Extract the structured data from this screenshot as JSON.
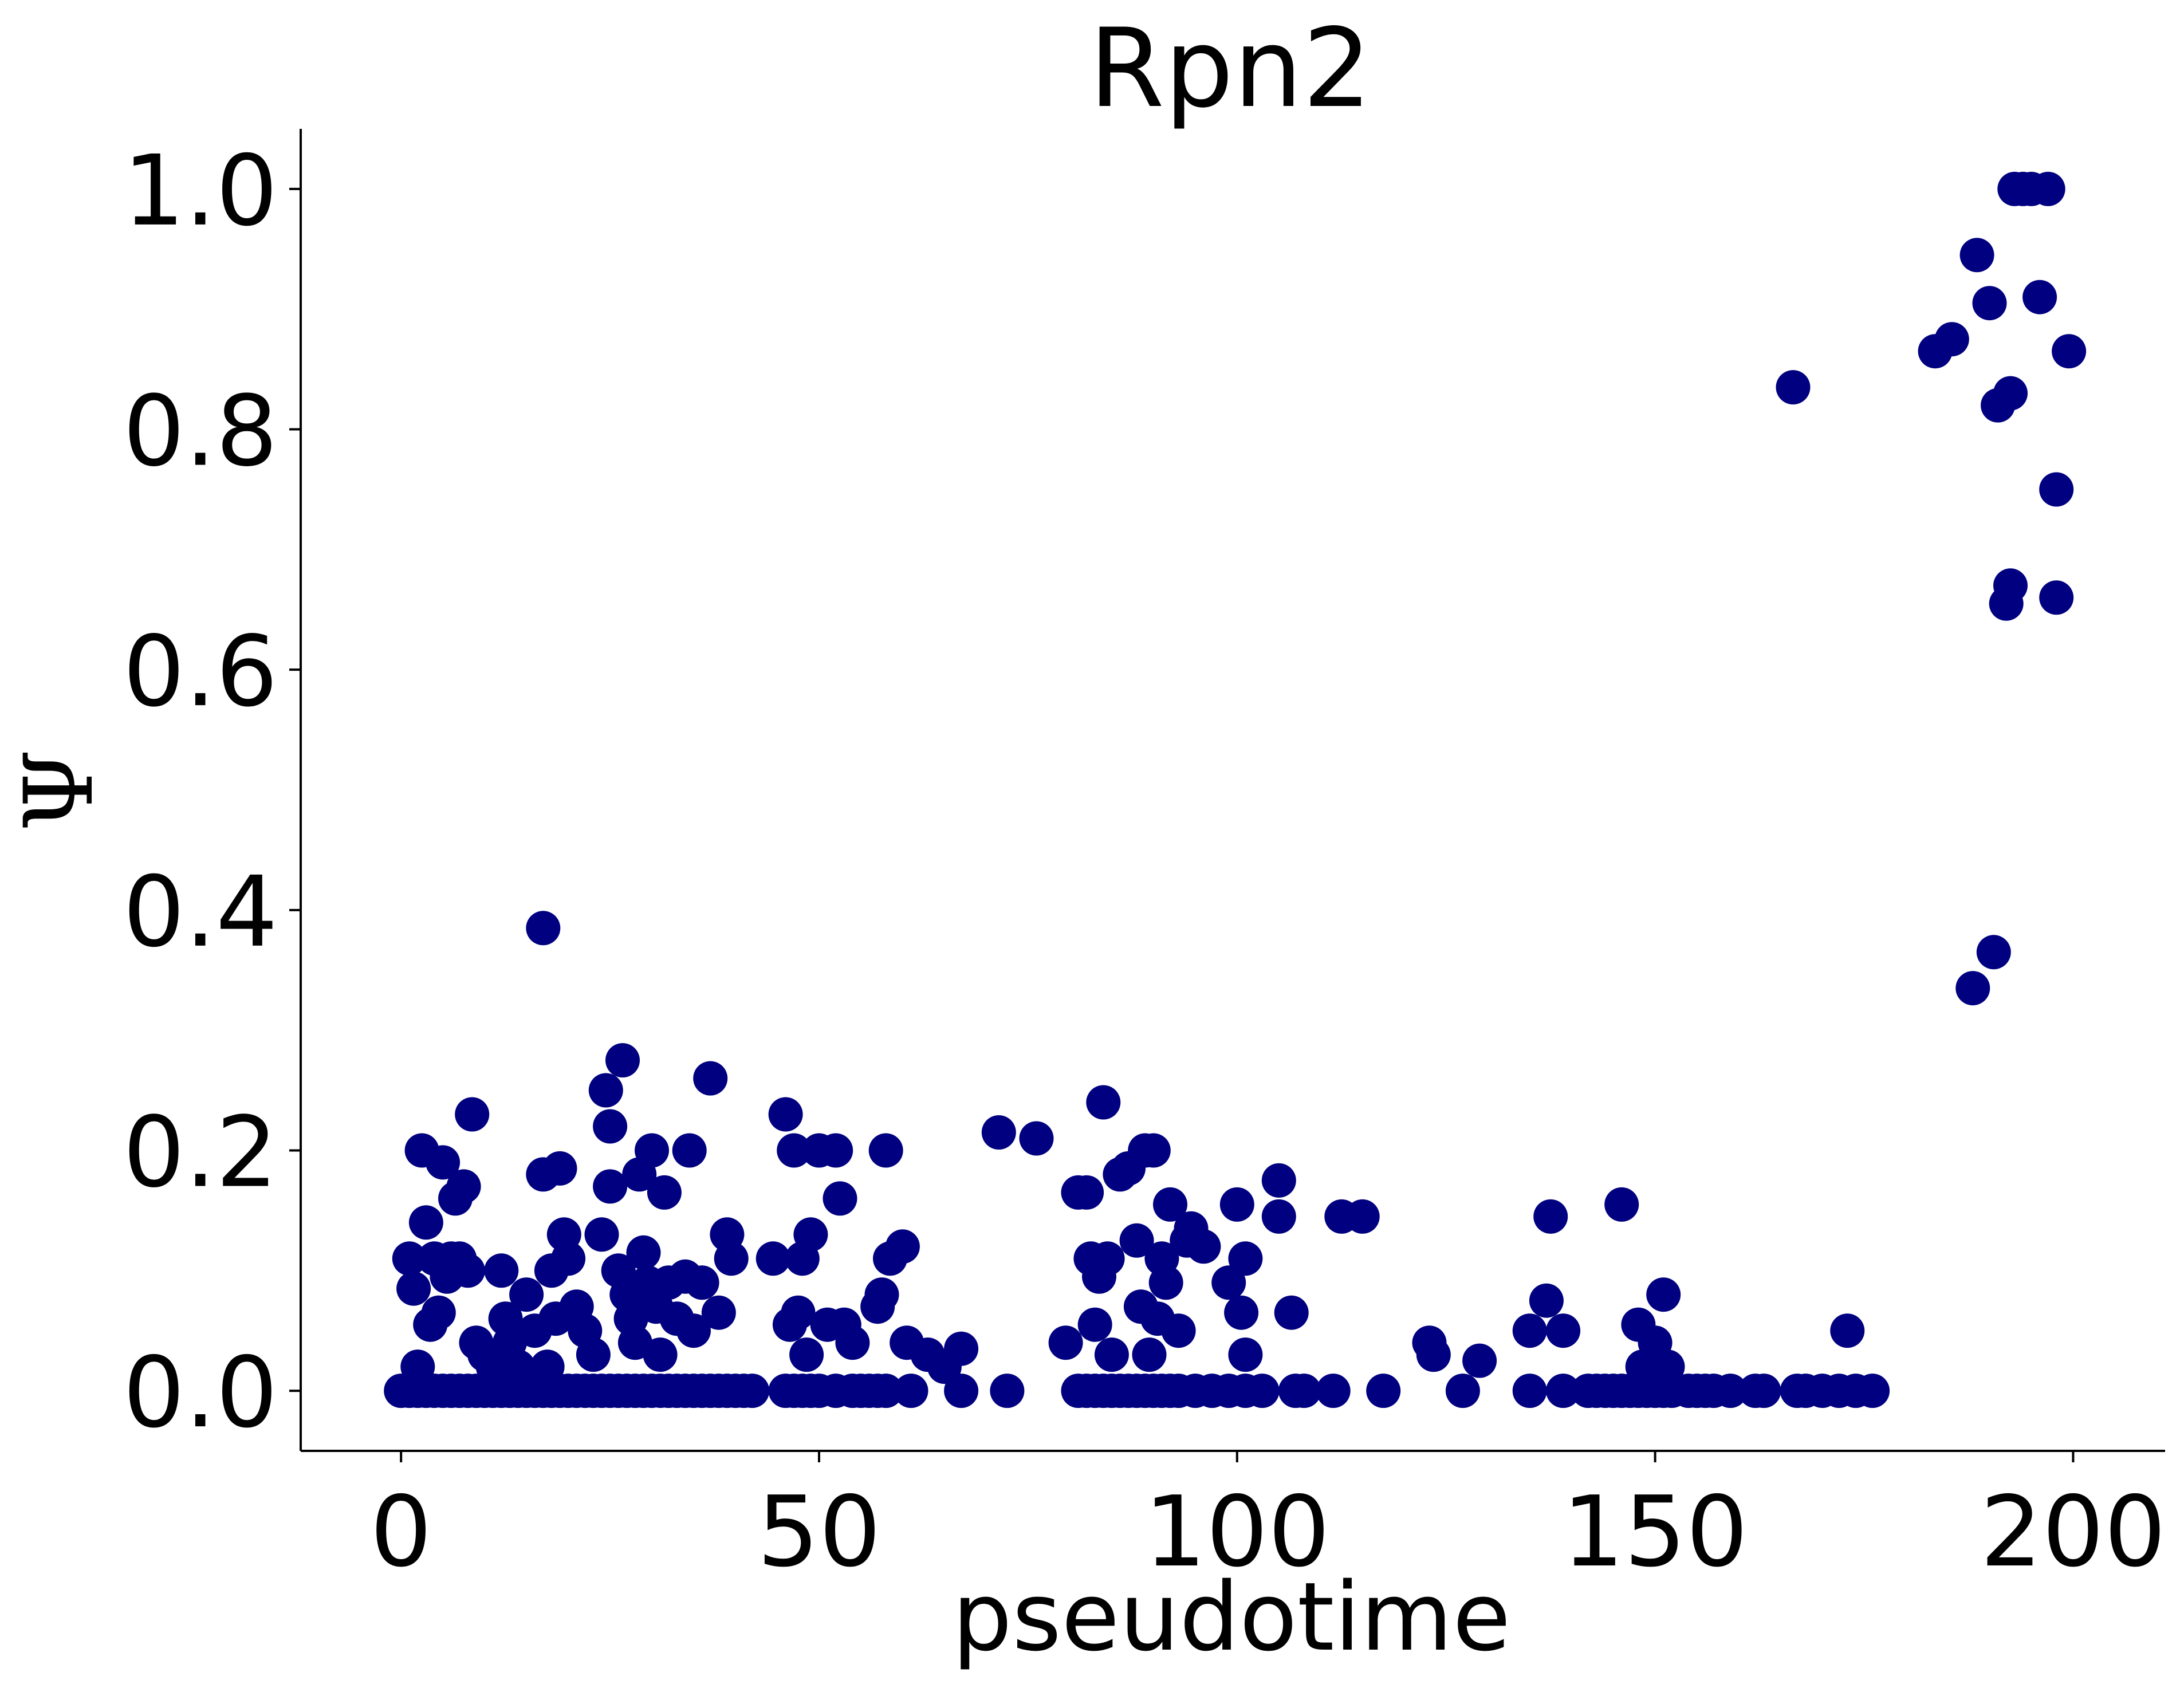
{
  "chart_data": {
    "type": "scatter",
    "title": "Rpn2",
    "xlabel": "pseudotime",
    "ylabel": "Ψ",
    "xlim": [
      -12,
      211
    ],
    "ylim": [
      -0.05,
      1.05
    ],
    "xticks": [
      0,
      50,
      100,
      150,
      200
    ],
    "xtick_labels": [
      "0",
      "50",
      "100",
      "150",
      "200"
    ],
    "yticks": [
      0.0,
      0.2,
      0.4,
      0.6,
      0.8,
      1.0
    ],
    "ytick_labels": [
      "0.0",
      "0.2",
      "0.4",
      "0.6",
      "0.8",
      "1.0"
    ],
    "grid": false,
    "legend": "none",
    "marker_color": "#000080",
    "points": [
      [
        0,
        0
      ],
      [
        1,
        0
      ],
      [
        2,
        0
      ],
      [
        3,
        0
      ],
      [
        4,
        0
      ],
      [
        5,
        0
      ],
      [
        6,
        0
      ],
      [
        7,
        0
      ],
      [
        8,
        0
      ],
      [
        9,
        0
      ],
      [
        10,
        0
      ],
      [
        11,
        0
      ],
      [
        12,
        0
      ],
      [
        13,
        0
      ],
      [
        14,
        0
      ],
      [
        15,
        0
      ],
      [
        16,
        0
      ],
      [
        17,
        0
      ],
      [
        18,
        0
      ],
      [
        19,
        0
      ],
      [
        20,
        0
      ],
      [
        21,
        0
      ],
      [
        22,
        0
      ],
      [
        23,
        0
      ],
      [
        24,
        0
      ],
      [
        25,
        0
      ],
      [
        26,
        0
      ],
      [
        27,
        0
      ],
      [
        28,
        0
      ],
      [
        29,
        0
      ],
      [
        30,
        0
      ],
      [
        31,
        0
      ],
      [
        32,
        0
      ],
      [
        33,
        0
      ],
      [
        34,
        0
      ],
      [
        35,
        0
      ],
      [
        36,
        0
      ],
      [
        37,
        0
      ],
      [
        38,
        0
      ],
      [
        39,
        0
      ],
      [
        40,
        0
      ],
      [
        41,
        0
      ],
      [
        42,
        0
      ],
      [
        46,
        0
      ],
      [
        47,
        0
      ],
      [
        48,
        0
      ],
      [
        49,
        0
      ],
      [
        50,
        0
      ],
      [
        52,
        0
      ],
      [
        54,
        0
      ],
      [
        55,
        0
      ],
      [
        56,
        0
      ],
      [
        57,
        0
      ],
      [
        58,
        0
      ],
      [
        61,
        0
      ],
      [
        67,
        0
      ],
      [
        72.5,
        0
      ],
      [
        81,
        0
      ],
      [
        82,
        0
      ],
      [
        83,
        0
      ],
      [
        84,
        0
      ],
      [
        85,
        0
      ],
      [
        86,
        0
      ],
      [
        87,
        0
      ],
      [
        88,
        0
      ],
      [
        89,
        0
      ],
      [
        90,
        0
      ],
      [
        91,
        0
      ],
      [
        92,
        0
      ],
      [
        93,
        0
      ],
      [
        95,
        0
      ],
      [
        97,
        0
      ],
      [
        99,
        0
      ],
      [
        101,
        0
      ],
      [
        103,
        0
      ],
      [
        107,
        0
      ],
      [
        108,
        0
      ],
      [
        111.5,
        0
      ],
      [
        117.5,
        0
      ],
      [
        127,
        0
      ],
      [
        135,
        0
      ],
      [
        139,
        0
      ],
      [
        142,
        0
      ],
      [
        143,
        0
      ],
      [
        144,
        0
      ],
      [
        145,
        0
      ],
      [
        146,
        0
      ],
      [
        147,
        0
      ],
      [
        148,
        0
      ],
      [
        149,
        0
      ],
      [
        150,
        0
      ],
      [
        151,
        0
      ],
      [
        152,
        0
      ],
      [
        154,
        0
      ],
      [
        155,
        0
      ],
      [
        156,
        0
      ],
      [
        157,
        0
      ],
      [
        159,
        0
      ],
      [
        162,
        0
      ],
      [
        163,
        0
      ],
      [
        167,
        0
      ],
      [
        168,
        0
      ],
      [
        170,
        0
      ],
      [
        172,
        0
      ],
      [
        174,
        0
      ],
      [
        176,
        0
      ],
      [
        1,
        0.11
      ],
      [
        1.5,
        0.085
      ],
      [
        2,
        0.02
      ],
      [
        2.5,
        0.2
      ],
      [
        3,
        0.14
      ],
      [
        3.5,
        0.055
      ],
      [
        4,
        0.11
      ],
      [
        4.5,
        0.065
      ],
      [
        5,
        0.19
      ],
      [
        5.5,
        0.095
      ],
      [
        6,
        0.11
      ],
      [
        6.5,
        0.16
      ],
      [
        7,
        0.11
      ],
      [
        7.5,
        0.17
      ],
      [
        8,
        0.1
      ],
      [
        8.5,
        0.23
      ],
      [
        9,
        0.04
      ],
      [
        10,
        0.03
      ],
      [
        11,
        0.02
      ],
      [
        12,
        0.1
      ],
      [
        12.5,
        0.06
      ],
      [
        13,
        0.04
      ],
      [
        14,
        0.02
      ],
      [
        15,
        0.08
      ],
      [
        16,
        0.05
      ],
      [
        17,
        0.385
      ],
      [
        17,
        0.18
      ],
      [
        17.5,
        0.02
      ],
      [
        18,
        0.1
      ],
      [
        18.5,
        0.06
      ],
      [
        19,
        0.185
      ],
      [
        19.5,
        0.13
      ],
      [
        20,
        0.11
      ],
      [
        21,
        0.07
      ],
      [
        22,
        0.05
      ],
      [
        23,
        0.03
      ],
      [
        24,
        0.13
      ],
      [
        24.5,
        0.25
      ],
      [
        25,
        0.22
      ],
      [
        25,
        0.17
      ],
      [
        26,
        0.1
      ],
      [
        26.5,
        0.275
      ],
      [
        27,
        0.08
      ],
      [
        27.5,
        0.06
      ],
      [
        28,
        0.04
      ],
      [
        28.5,
        0.18
      ],
      [
        29,
        0.115
      ],
      [
        29.5,
        0.09
      ],
      [
        30,
        0.2
      ],
      [
        30.5,
        0.07
      ],
      [
        31,
        0.03
      ],
      [
        31.5,
        0.165
      ],
      [
        32,
        0.09
      ],
      [
        33,
        0.06
      ],
      [
        34,
        0.095
      ],
      [
        34.5,
        0.2
      ],
      [
        35,
        0.05
      ],
      [
        36,
        0.09
      ],
      [
        37,
        0.26
      ],
      [
        38,
        0.065
      ],
      [
        39,
        0.13
      ],
      [
        39.5,
        0.11
      ],
      [
        44.5,
        0.11
      ],
      [
        46,
        0.23
      ],
      [
        46.5,
        0.055
      ],
      [
        47,
        0.2
      ],
      [
        47.5,
        0.065
      ],
      [
        48,
        0.11
      ],
      [
        48.5,
        0.03
      ],
      [
        49,
        0.13
      ],
      [
        50,
        0.2
      ],
      [
        51,
        0.055
      ],
      [
        52,
        0.2
      ],
      [
        52.5,
        0.16
      ],
      [
        53,
        0.055
      ],
      [
        54,
        0.04
      ],
      [
        57,
        0.07
      ],
      [
        57.5,
        0.08
      ],
      [
        58,
        0.2
      ],
      [
        58.5,
        0.11
      ],
      [
        60,
        0.12
      ],
      [
        60.5,
        0.04
      ],
      [
        63,
        0.03
      ],
      [
        65,
        0.02
      ],
      [
        67,
        0.035
      ],
      [
        71.5,
        0.215
      ],
      [
        76,
        0.21
      ],
      [
        79.5,
        0.04
      ],
      [
        81,
        0.165
      ],
      [
        82,
        0.165
      ],
      [
        82.5,
        0.11
      ],
      [
        83,
        0.055
      ],
      [
        83.5,
        0.095
      ],
      [
        84,
        0.24
      ],
      [
        84.5,
        0.11
      ],
      [
        85,
        0.03
      ],
      [
        86,
        0.18
      ],
      [
        87,
        0.185
      ],
      [
        88,
        0.125
      ],
      [
        88.5,
        0.07
      ],
      [
        89,
        0.2
      ],
      [
        89.5,
        0.03
      ],
      [
        90,
        0.2
      ],
      [
        90.5,
        0.06
      ],
      [
        91,
        0.11
      ],
      [
        91.5,
        0.09
      ],
      [
        92,
        0.155
      ],
      [
        93,
        0.05
      ],
      [
        94,
        0.125
      ],
      [
        94.5,
        0.135
      ],
      [
        96,
        0.12
      ],
      [
        99,
        0.09
      ],
      [
        100,
        0.155
      ],
      [
        100.5,
        0.065
      ],
      [
        101,
        0.11
      ],
      [
        101,
        0.03
      ],
      [
        105,
        0.145
      ],
      [
        105,
        0.175
      ],
      [
        106.5,
        0.065
      ],
      [
        112.5,
        0.145
      ],
      [
        115,
        0.145
      ],
      [
        123,
        0.04
      ],
      [
        123.5,
        0.03
      ],
      [
        129,
        0.025
      ],
      [
        135,
        0.05
      ],
      [
        137,
        0.075
      ],
      [
        137.5,
        0.145
      ],
      [
        139,
        0.05
      ],
      [
        146,
        0.155
      ],
      [
        148,
        0.055
      ],
      [
        148.5,
        0.02
      ],
      [
        150,
        0.04
      ],
      [
        151,
        0.08
      ],
      [
        151.5,
        0.02
      ],
      [
        173,
        0.05
      ],
      [
        166.5,
        0.835
      ],
      [
        183.5,
        0.865
      ],
      [
        185.5,
        0.875
      ],
      [
        188,
        0.335
      ],
      [
        188.5,
        0.945
      ],
      [
        190,
        0.905
      ],
      [
        190.5,
        0.365
      ],
      [
        191,
        0.82
      ],
      [
        192,
        0.655
      ],
      [
        192.5,
        0.67
      ],
      [
        192.5,
        0.83
      ],
      [
        193,
        1.0
      ],
      [
        194,
        1.0
      ],
      [
        195,
        1.0
      ],
      [
        196,
        0.91
      ],
      [
        197,
        1.0
      ],
      [
        198,
        0.75
      ],
      [
        198,
        0.66
      ],
      [
        199.5,
        0.865
      ]
    ]
  }
}
